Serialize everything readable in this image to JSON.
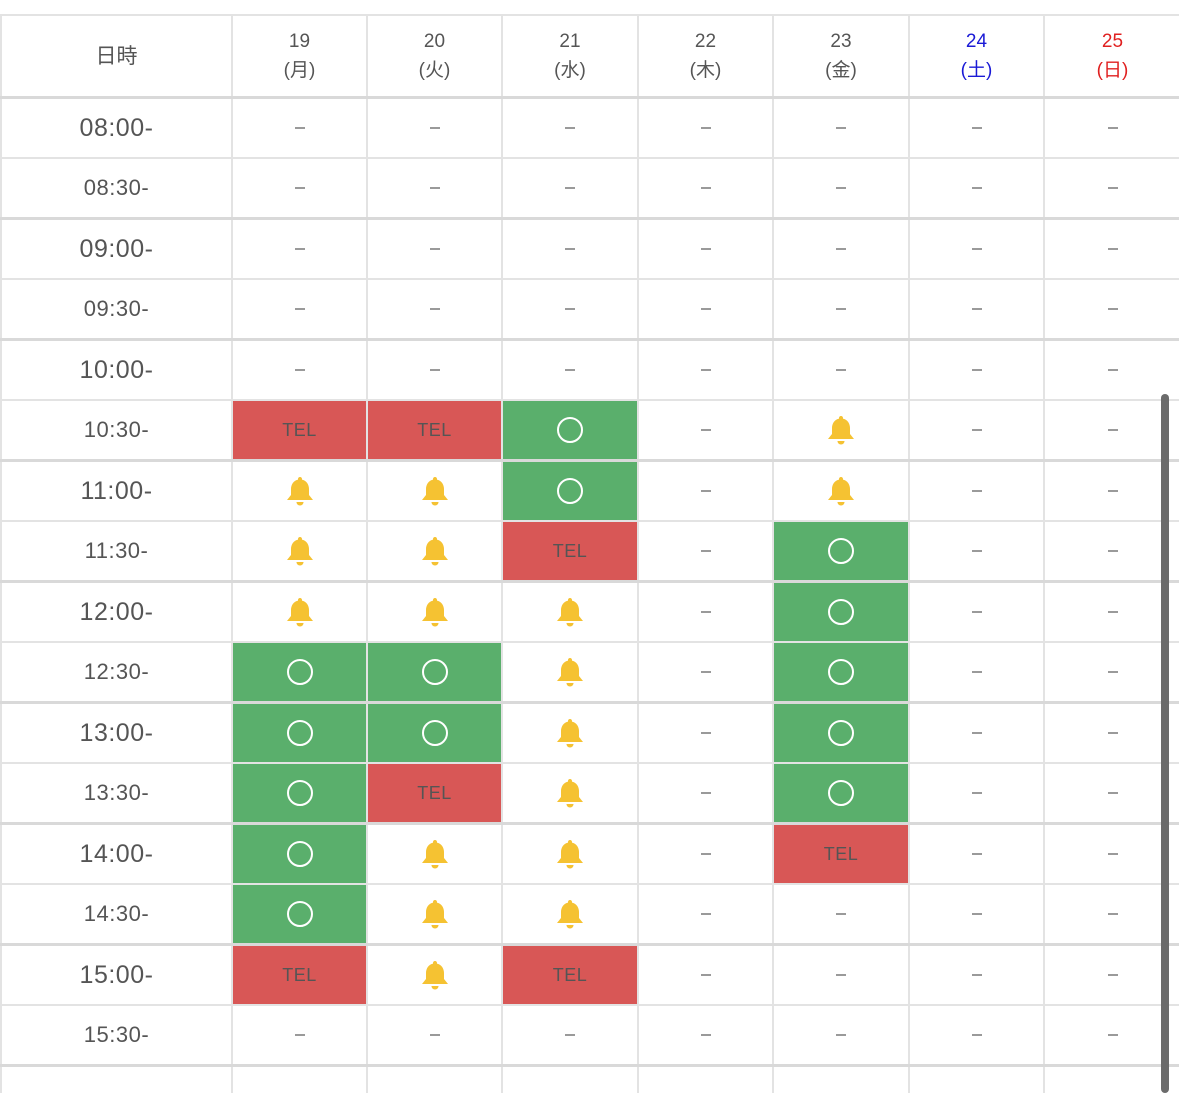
{
  "header": {
    "time_label": "日時",
    "days": [
      {
        "date": "19",
        "weekday": "(月)",
        "kind": "weekday"
      },
      {
        "date": "20",
        "weekday": "(火)",
        "kind": "weekday"
      },
      {
        "date": "21",
        "weekday": "(水)",
        "kind": "weekday"
      },
      {
        "date": "22",
        "weekday": "(木)",
        "kind": "weekday"
      },
      {
        "date": "23",
        "weekday": "(金)",
        "kind": "weekday"
      },
      {
        "date": "24",
        "weekday": "(土)",
        "kind": "saturday"
      },
      {
        "date": "25",
        "weekday": "(日)",
        "kind": "sunday"
      }
    ]
  },
  "legend": {
    "none": "–",
    "tel": "TEL",
    "ok": "available-circle-icon",
    "bell": "bell-icon"
  },
  "colors": {
    "tel_bg": "#d85756",
    "ok_bg": "#5aaf6c",
    "bell": "#f5c232",
    "saturday": "#1a1ad6",
    "sunday": "#e02020"
  },
  "rows": [
    {
      "time": "08:00-",
      "cells": [
        "none",
        "none",
        "none",
        "none",
        "none",
        "none",
        "none"
      ]
    },
    {
      "time": "08:30-",
      "cells": [
        "none",
        "none",
        "none",
        "none",
        "none",
        "none",
        "none"
      ]
    },
    {
      "time": "09:00-",
      "cells": [
        "none",
        "none",
        "none",
        "none",
        "none",
        "none",
        "none"
      ]
    },
    {
      "time": "09:30-",
      "cells": [
        "none",
        "none",
        "none",
        "none",
        "none",
        "none",
        "none"
      ]
    },
    {
      "time": "10:00-",
      "cells": [
        "none",
        "none",
        "none",
        "none",
        "none",
        "none",
        "none"
      ]
    },
    {
      "time": "10:30-",
      "cells": [
        "tel",
        "tel",
        "ok",
        "none",
        "bell",
        "none",
        "none"
      ]
    },
    {
      "time": "11:00-",
      "cells": [
        "bell",
        "bell",
        "ok",
        "none",
        "bell",
        "none",
        "none"
      ]
    },
    {
      "time": "11:30-",
      "cells": [
        "bell",
        "bell",
        "tel",
        "none",
        "ok",
        "none",
        "none"
      ]
    },
    {
      "time": "12:00-",
      "cells": [
        "bell",
        "bell",
        "bell",
        "none",
        "ok",
        "none",
        "none"
      ]
    },
    {
      "time": "12:30-",
      "cells": [
        "ok",
        "ok",
        "bell",
        "none",
        "ok",
        "none",
        "none"
      ]
    },
    {
      "time": "13:00-",
      "cells": [
        "ok",
        "ok",
        "bell",
        "none",
        "ok",
        "none",
        "none"
      ]
    },
    {
      "time": "13:30-",
      "cells": [
        "ok",
        "tel",
        "bell",
        "none",
        "ok",
        "none",
        "none"
      ]
    },
    {
      "time": "14:00-",
      "cells": [
        "ok",
        "bell",
        "bell",
        "none",
        "tel",
        "none",
        "none"
      ]
    },
    {
      "time": "14:30-",
      "cells": [
        "ok",
        "bell",
        "bell",
        "none",
        "none",
        "none",
        "none"
      ]
    },
    {
      "time": "15:00-",
      "cells": [
        "tel",
        "bell",
        "tel",
        "none",
        "none",
        "none",
        "none"
      ]
    },
    {
      "time": "15:30-",
      "cells": [
        "none",
        "none",
        "none",
        "none",
        "none",
        "none",
        "none"
      ]
    },
    {
      "time": "",
      "cells": [
        "none",
        "none",
        "none",
        "none",
        "none",
        "none",
        "none"
      ]
    }
  ]
}
